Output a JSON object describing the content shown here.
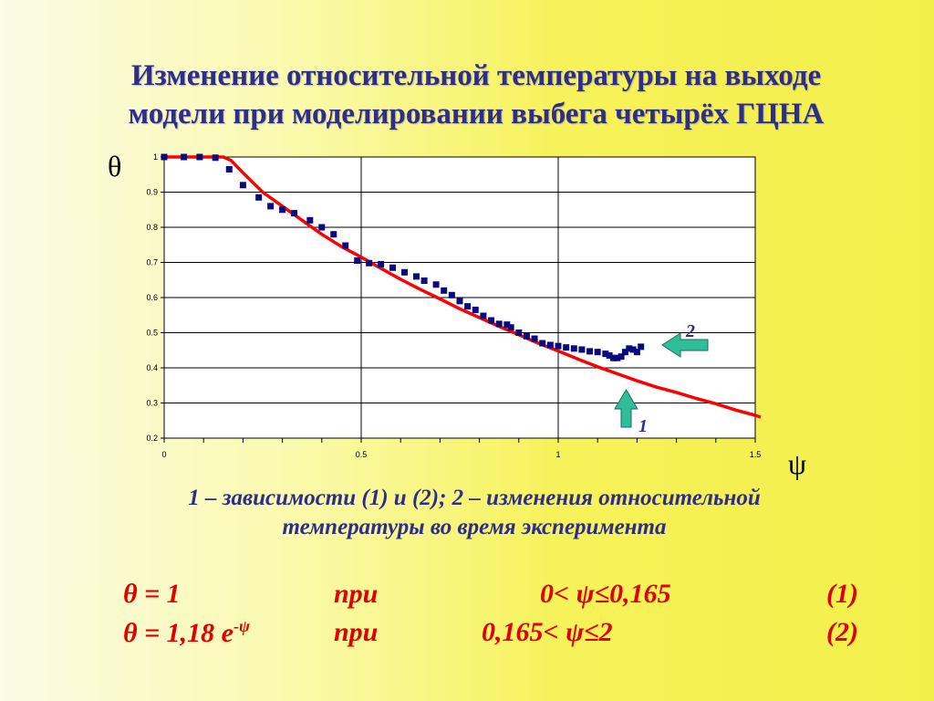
{
  "slide": {
    "title_line1": "Изменение относительной температуры на выходе",
    "title_line2": "модели при моделировании выбега  четырёх ГЦНА",
    "y_symbol": "θ",
    "x_symbol": "ψ",
    "caption_line1": "1 – зависимости (1) и (2);  2 – изменения относительной",
    "caption_line2": "температуры во время эксперимента",
    "formulas": [
      {
        "lhs": "θ = 1",
        "sup": "",
        "word": "при",
        "cond": "0< ψ≤0,165",
        "num": "(1)"
      },
      {
        "lhs": "θ = 1,18 e",
        "sup": "-ψ",
        "word": "при",
        "cond": "0,165< ψ≤2",
        "num": "(2)"
      }
    ]
  },
  "chart_data": {
    "type": "scatter",
    "xlim": [
      0,
      1.5
    ],
    "ylim": [
      0.2,
      1
    ],
    "x_ticks": [
      "0",
      "0.5",
      "1",
      "1.5"
    ],
    "y_ticks": [
      "0.2",
      "0.3",
      "0.4",
      "0.5",
      "0.6",
      "0.7",
      "0.8",
      "0.9",
      "1"
    ],
    "grid": true,
    "series": [
      {
        "name": "1",
        "kind": "line",
        "color": "#ff0000",
        "x": [
          0,
          0.05,
          0.1,
          0.15,
          0.17,
          0.2,
          0.25,
          0.3,
          0.35,
          0.4,
          0.45,
          0.5,
          0.55,
          0.6,
          0.65,
          0.7,
          0.75,
          0.8,
          0.85,
          0.9,
          0.95,
          1.0,
          1.05,
          1.1,
          1.15,
          1.2,
          1.25,
          1.3,
          1.35,
          1.4,
          1.45,
          1.5
        ],
        "y": [
          1,
          1,
          1,
          1,
          0.99,
          0.955,
          0.9,
          0.86,
          0.82,
          0.78,
          0.745,
          0.715,
          0.683,
          0.652,
          0.623,
          0.596,
          0.568,
          0.543,
          0.518,
          0.494,
          0.47,
          0.448,
          0.425,
          0.403,
          0.383,
          0.363,
          0.345,
          0.33,
          0.313,
          0.298,
          0.28,
          0.265
        ]
      },
      {
        "name": "2",
        "kind": "markers",
        "color": "#0a0a80",
        "x": [
          0.0,
          0.05,
          0.09,
          0.13,
          0.165,
          0.2,
          0.24,
          0.27,
          0.3,
          0.33,
          0.37,
          0.4,
          0.43,
          0.46,
          0.49,
          0.52,
          0.55,
          0.58,
          0.61,
          0.64,
          0.66,
          0.69,
          0.71,
          0.73,
          0.75,
          0.77,
          0.79,
          0.81,
          0.83,
          0.85,
          0.87,
          0.88,
          0.9,
          0.92,
          0.94,
          0.96,
          0.98,
          1.0,
          1.02,
          1.04,
          1.06,
          1.08,
          1.1,
          1.12,
          1.13,
          1.14,
          1.15,
          1.16,
          1.17,
          1.18,
          1.19,
          1.2,
          1.21
        ],
        "y": [
          1.0,
          1.0,
          1.0,
          0.998,
          0.965,
          0.92,
          0.885,
          0.86,
          0.85,
          0.84,
          0.82,
          0.8,
          0.78,
          0.748,
          0.705,
          0.698,
          0.695,
          0.685,
          0.672,
          0.66,
          0.648,
          0.637,
          0.62,
          0.607,
          0.59,
          0.575,
          0.565,
          0.548,
          0.535,
          0.525,
          0.523,
          0.515,
          0.5,
          0.49,
          0.483,
          0.47,
          0.465,
          0.462,
          0.458,
          0.455,
          0.452,
          0.447,
          0.445,
          0.44,
          0.435,
          0.428,
          0.428,
          0.432,
          0.445,
          0.455,
          0.452,
          0.445,
          0.46
        ]
      }
    ],
    "annotations": [
      {
        "label": "1",
        "arrow": "up",
        "color": "#2fbf98"
      },
      {
        "label": "2",
        "arrow": "left",
        "color": "#2fbf98"
      }
    ]
  }
}
